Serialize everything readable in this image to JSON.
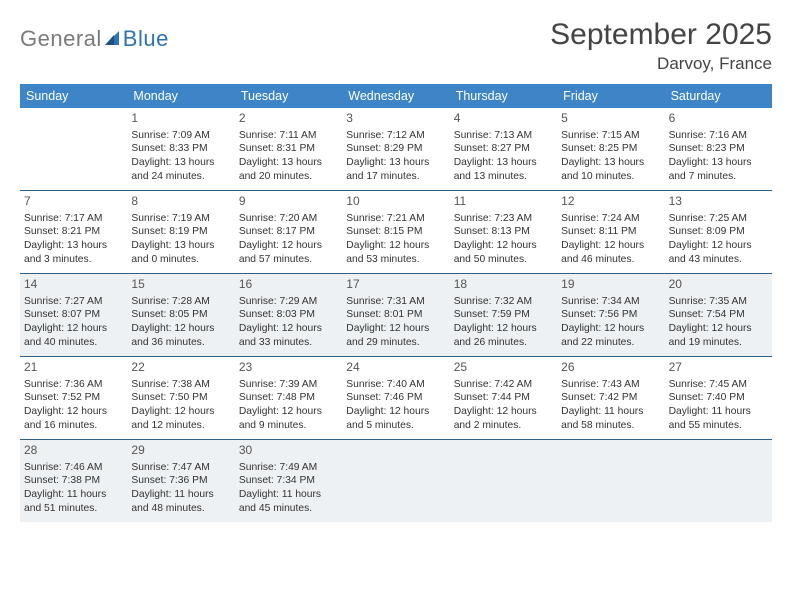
{
  "logo": {
    "word1": "General",
    "word2": "Blue"
  },
  "title": "September 2025",
  "location": "Darvoy, France",
  "accent_color": "#3d85c6",
  "border_color": "#2e5f8a",
  "shaded_bg": "#eef1f3",
  "headers": [
    "Sunday",
    "Monday",
    "Tuesday",
    "Wednesday",
    "Thursday",
    "Friday",
    "Saturday"
  ],
  "weeks": [
    [
      {
        "n": "",
        "sr": "",
        "ss": "",
        "dl": ""
      },
      {
        "n": "1",
        "sr": "Sunrise: 7:09 AM",
        "ss": "Sunset: 8:33 PM",
        "dl": "Daylight: 13 hours and 24 minutes."
      },
      {
        "n": "2",
        "sr": "Sunrise: 7:11 AM",
        "ss": "Sunset: 8:31 PM",
        "dl": "Daylight: 13 hours and 20 minutes."
      },
      {
        "n": "3",
        "sr": "Sunrise: 7:12 AM",
        "ss": "Sunset: 8:29 PM",
        "dl": "Daylight: 13 hours and 17 minutes."
      },
      {
        "n": "4",
        "sr": "Sunrise: 7:13 AM",
        "ss": "Sunset: 8:27 PM",
        "dl": "Daylight: 13 hours and 13 minutes."
      },
      {
        "n": "5",
        "sr": "Sunrise: 7:15 AM",
        "ss": "Sunset: 8:25 PM",
        "dl": "Daylight: 13 hours and 10 minutes."
      },
      {
        "n": "6",
        "sr": "Sunrise: 7:16 AM",
        "ss": "Sunset: 8:23 PM",
        "dl": "Daylight: 13 hours and 7 minutes."
      }
    ],
    [
      {
        "n": "7",
        "sr": "Sunrise: 7:17 AM",
        "ss": "Sunset: 8:21 PM",
        "dl": "Daylight: 13 hours and 3 minutes."
      },
      {
        "n": "8",
        "sr": "Sunrise: 7:19 AM",
        "ss": "Sunset: 8:19 PM",
        "dl": "Daylight: 13 hours and 0 minutes."
      },
      {
        "n": "9",
        "sr": "Sunrise: 7:20 AM",
        "ss": "Sunset: 8:17 PM",
        "dl": "Daylight: 12 hours and 57 minutes."
      },
      {
        "n": "10",
        "sr": "Sunrise: 7:21 AM",
        "ss": "Sunset: 8:15 PM",
        "dl": "Daylight: 12 hours and 53 minutes."
      },
      {
        "n": "11",
        "sr": "Sunrise: 7:23 AM",
        "ss": "Sunset: 8:13 PM",
        "dl": "Daylight: 12 hours and 50 minutes."
      },
      {
        "n": "12",
        "sr": "Sunrise: 7:24 AM",
        "ss": "Sunset: 8:11 PM",
        "dl": "Daylight: 12 hours and 46 minutes."
      },
      {
        "n": "13",
        "sr": "Sunrise: 7:25 AM",
        "ss": "Sunset: 8:09 PM",
        "dl": "Daylight: 12 hours and 43 minutes."
      }
    ],
    [
      {
        "n": "14",
        "sr": "Sunrise: 7:27 AM",
        "ss": "Sunset: 8:07 PM",
        "dl": "Daylight: 12 hours and 40 minutes."
      },
      {
        "n": "15",
        "sr": "Sunrise: 7:28 AM",
        "ss": "Sunset: 8:05 PM",
        "dl": "Daylight: 12 hours and 36 minutes."
      },
      {
        "n": "16",
        "sr": "Sunrise: 7:29 AM",
        "ss": "Sunset: 8:03 PM",
        "dl": "Daylight: 12 hours and 33 minutes."
      },
      {
        "n": "17",
        "sr": "Sunrise: 7:31 AM",
        "ss": "Sunset: 8:01 PM",
        "dl": "Daylight: 12 hours and 29 minutes."
      },
      {
        "n": "18",
        "sr": "Sunrise: 7:32 AM",
        "ss": "Sunset: 7:59 PM",
        "dl": "Daylight: 12 hours and 26 minutes."
      },
      {
        "n": "19",
        "sr": "Sunrise: 7:34 AM",
        "ss": "Sunset: 7:56 PM",
        "dl": "Daylight: 12 hours and 22 minutes."
      },
      {
        "n": "20",
        "sr": "Sunrise: 7:35 AM",
        "ss": "Sunset: 7:54 PM",
        "dl": "Daylight: 12 hours and 19 minutes."
      }
    ],
    [
      {
        "n": "21",
        "sr": "Sunrise: 7:36 AM",
        "ss": "Sunset: 7:52 PM",
        "dl": "Daylight: 12 hours and 16 minutes."
      },
      {
        "n": "22",
        "sr": "Sunrise: 7:38 AM",
        "ss": "Sunset: 7:50 PM",
        "dl": "Daylight: 12 hours and 12 minutes."
      },
      {
        "n": "23",
        "sr": "Sunrise: 7:39 AM",
        "ss": "Sunset: 7:48 PM",
        "dl": "Daylight: 12 hours and 9 minutes."
      },
      {
        "n": "24",
        "sr": "Sunrise: 7:40 AM",
        "ss": "Sunset: 7:46 PM",
        "dl": "Daylight: 12 hours and 5 minutes."
      },
      {
        "n": "25",
        "sr": "Sunrise: 7:42 AM",
        "ss": "Sunset: 7:44 PM",
        "dl": "Daylight: 12 hours and 2 minutes."
      },
      {
        "n": "26",
        "sr": "Sunrise: 7:43 AM",
        "ss": "Sunset: 7:42 PM",
        "dl": "Daylight: 11 hours and 58 minutes."
      },
      {
        "n": "27",
        "sr": "Sunrise: 7:45 AM",
        "ss": "Sunset: 7:40 PM",
        "dl": "Daylight: 11 hours and 55 minutes."
      }
    ],
    [
      {
        "n": "28",
        "sr": "Sunrise: 7:46 AM",
        "ss": "Sunset: 7:38 PM",
        "dl": "Daylight: 11 hours and 51 minutes."
      },
      {
        "n": "29",
        "sr": "Sunrise: 7:47 AM",
        "ss": "Sunset: 7:36 PM",
        "dl": "Daylight: 11 hours and 48 minutes."
      },
      {
        "n": "30",
        "sr": "Sunrise: 7:49 AM",
        "ss": "Sunset: 7:34 PM",
        "dl": "Daylight: 11 hours and 45 minutes."
      },
      {
        "n": "",
        "sr": "",
        "ss": "",
        "dl": ""
      },
      {
        "n": "",
        "sr": "",
        "ss": "",
        "dl": ""
      },
      {
        "n": "",
        "sr": "",
        "ss": "",
        "dl": ""
      },
      {
        "n": "",
        "sr": "",
        "ss": "",
        "dl": ""
      }
    ]
  ],
  "shaded_rows": [
    2,
    4
  ]
}
